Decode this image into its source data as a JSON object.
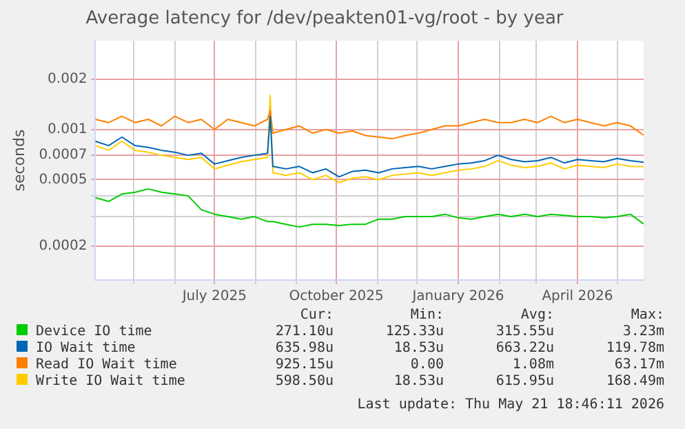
{
  "chart_data": {
    "type": "line",
    "title": "Average latency for /dev/peakten01-vg/root - by year",
    "ylabel": "seconds",
    "log": "y",
    "ylim": [
      0.000125,
      0.0034
    ],
    "yticks": [
      0.002,
      0.001,
      0.0007,
      0.0005,
      {
        "value": 0.0004,
        "label": null
      },
      {
        "value": 0.0003,
        "label": null
      },
      0.0002
    ],
    "xlim": [
      "2025-04-02",
      "2026-05-21"
    ],
    "xticks": [
      {
        "value": "2025-05-01",
        "label": null
      },
      {
        "value": "2025-06-01",
        "label": null
      },
      {
        "value": "2025-07-01",
        "label": "July 2025"
      },
      {
        "value": "2025-08-01",
        "label": null
      },
      {
        "value": "2025-09-01",
        "label": null
      },
      {
        "value": "2025-10-01",
        "label": "October 2025"
      },
      {
        "value": "2025-11-01",
        "label": null
      },
      {
        "value": "2025-12-01",
        "label": null
      },
      {
        "value": "2026-01-01",
        "label": "January 2026"
      },
      {
        "value": "2026-02-01",
        "label": null
      },
      {
        "value": "2026-03-01",
        "label": null
      },
      {
        "value": "2026-04-01",
        "label": "April 2026"
      },
      {
        "value": "2026-05-01",
        "label": null
      }
    ],
    "grid": true,
    "legend": "bottom",
    "x": [
      "2025-04-02",
      "2025-04-12",
      "2025-04-22",
      "2025-05-02",
      "2025-05-12",
      "2025-05-22",
      "2025-06-01",
      "2025-06-11",
      "2025-06-21",
      "2025-07-01",
      "2025-07-11",
      "2025-07-21",
      "2025-07-31",
      "2025-08-10",
      "2025-08-12",
      "2025-08-14",
      "2025-08-24",
      "2025-09-03",
      "2025-09-13",
      "2025-09-23",
      "2025-10-03",
      "2025-10-13",
      "2025-10-23",
      "2025-11-02",
      "2025-11-12",
      "2025-11-22",
      "2025-12-02",
      "2025-12-12",
      "2025-12-22",
      "2026-01-01",
      "2026-01-11",
      "2026-01-21",
      "2026-01-31",
      "2026-02-10",
      "2026-02-20",
      "2026-03-02",
      "2026-03-12",
      "2026-03-22",
      "2026-04-01",
      "2026-04-11",
      "2026-04-21",
      "2026-05-01",
      "2026-05-11",
      "2026-05-21"
    ],
    "series": [
      {
        "name": "Device IO time",
        "color": "#00cc00",
        "values": [
          0.00039,
          0.00037,
          0.00041,
          0.00042,
          0.00044,
          0.00042,
          0.00041,
          0.0004,
          0.00033,
          0.00031,
          0.0003,
          0.00029,
          0.0003,
          0.00028,
          0.00028,
          0.00028,
          0.00027,
          0.00026,
          0.00027,
          0.00027,
          0.000265,
          0.00027,
          0.00027,
          0.00029,
          0.00029,
          0.0003,
          0.0003,
          0.0003,
          0.00031,
          0.000295,
          0.00029,
          0.0003,
          0.00031,
          0.0003,
          0.00031,
          0.0003,
          0.00031,
          0.000305,
          0.0003,
          0.0003,
          0.000295,
          0.0003,
          0.00031,
          0.000271
        ]
      },
      {
        "name": "IO Wait time",
        "color": "#0066b3",
        "values": [
          0.00085,
          0.0008,
          0.0009,
          0.0008,
          0.00078,
          0.00075,
          0.00073,
          0.0007,
          0.00072,
          0.00062,
          0.00065,
          0.00068,
          0.0007,
          0.00072,
          0.0012,
          0.0006,
          0.00058,
          0.0006,
          0.00055,
          0.00058,
          0.00052,
          0.00056,
          0.00057,
          0.00055,
          0.00058,
          0.00059,
          0.0006,
          0.00058,
          0.0006,
          0.00062,
          0.00063,
          0.00065,
          0.0007,
          0.00066,
          0.00064,
          0.00065,
          0.00068,
          0.00063,
          0.00066,
          0.00065,
          0.00064,
          0.00067,
          0.00065,
          0.000636
        ]
      },
      {
        "name": "Read IO Wait time",
        "color": "#ff8000",
        "values": [
          0.00115,
          0.0011,
          0.0012,
          0.0011,
          0.00115,
          0.00105,
          0.0012,
          0.0011,
          0.00115,
          0.001,
          0.00115,
          0.0011,
          0.00105,
          0.00115,
          0.0013,
          0.00095,
          0.001,
          0.00105,
          0.00095,
          0.001,
          0.00095,
          0.00098,
          0.00092,
          0.0009,
          0.00088,
          0.00092,
          0.00095,
          0.001,
          0.00105,
          0.00105,
          0.0011,
          0.00115,
          0.0011,
          0.0011,
          0.00115,
          0.0011,
          0.0012,
          0.0011,
          0.00115,
          0.0011,
          0.00105,
          0.0011,
          0.00105,
          0.000925
        ]
      },
      {
        "name": "Write IO Wait time",
        "color": "#ffcc00",
        "values": [
          0.0008,
          0.00075,
          0.00085,
          0.00075,
          0.00073,
          0.0007,
          0.00068,
          0.00066,
          0.00068,
          0.00058,
          0.00061,
          0.00064,
          0.00066,
          0.00068,
          0.0016,
          0.00055,
          0.00053,
          0.00055,
          0.0005,
          0.00053,
          0.00048,
          0.00051,
          0.00052,
          0.0005,
          0.00053,
          0.00054,
          0.00055,
          0.00053,
          0.00055,
          0.00057,
          0.00058,
          0.0006,
          0.00065,
          0.00061,
          0.00059,
          0.0006,
          0.00063,
          0.00058,
          0.00061,
          0.0006,
          0.00059,
          0.00062,
          0.0006,
          0.000599
        ]
      }
    ],
    "annotations": [
      "Cur:",
      "Min:",
      "Avg:",
      "Max:",
      "271.10u",
      "125.33u",
      "315.55u",
      "3.23m",
      "635.98u",
      "18.53u",
      "663.22u",
      "119.78m",
      "925.15u",
      "0.00",
      "1.08m",
      "63.17m",
      "598.50u",
      "18.53u",
      "615.95u",
      "168.49m",
      "Last update: Thu May 21 18:46:11 2026"
    ]
  }
}
